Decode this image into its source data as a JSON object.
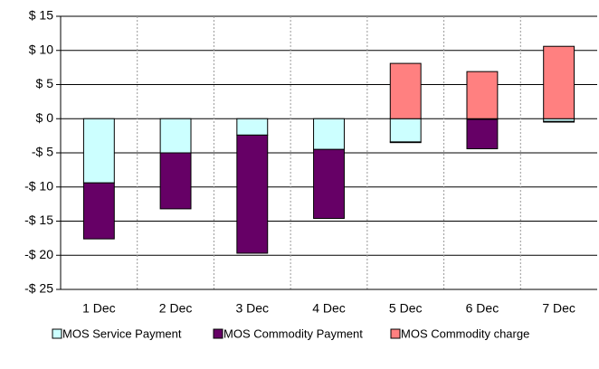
{
  "chart_data": {
    "type": "stacked_bar",
    "categories": [
      "1 Dec",
      "2 Dec",
      "3 Dec",
      "4 Dec",
      "5 Dec",
      "6 Dec",
      "7 Dec"
    ],
    "series": [
      {
        "name": "MOS Service Payment",
        "color": "#ccffff",
        "values": [
          -9.4,
          -5.0,
          -2.4,
          -4.5,
          -3.4,
          -0.1,
          -0.4
        ]
      },
      {
        "name": "MOS Commodity Payment",
        "color": "#660066",
        "values": [
          -8.2,
          -8.2,
          -17.3,
          -10.1,
          -0.1,
          -4.3,
          -0.1
        ]
      },
      {
        "name": "MOS Commodity charge",
        "color": "#ff8080",
        "values": [
          0,
          0,
          0,
          0,
          8.1,
          6.9,
          10.6
        ]
      }
    ],
    "ylim": [
      -25,
      15
    ],
    "yticks": [
      {
        "value": -25,
        "label": "-$ 25"
      },
      {
        "value": -20,
        "label": "-$ 20"
      },
      {
        "value": -15,
        "label": "-$ 15"
      },
      {
        "value": -10,
        "label": "-$ 10"
      },
      {
        "value": -5,
        "label": "-$ 5"
      },
      {
        "value": 0,
        "label": "$ 0"
      },
      {
        "value": 5,
        "label": "$ 5"
      },
      {
        "value": 10,
        "label": "$ 10"
      },
      {
        "value": 15,
        "label": "$ 15"
      }
    ],
    "grid": true,
    "legend": "bottom"
  }
}
